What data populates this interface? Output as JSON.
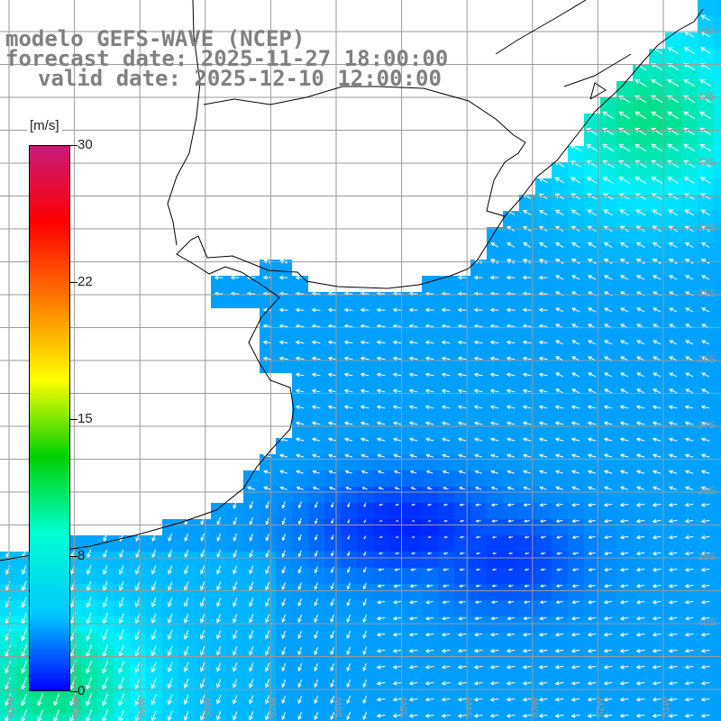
{
  "header": {
    "line1": "modelo GEFS-WAVE (NCEP)",
    "line2": "forecast date: 2025-11-27 18:00:00",
    "line3": "valid date: 2025-12-10 12:00:00"
  },
  "colorbar": {
    "unit": "[m/s]",
    "ticks": [
      "30",
      "22",
      "15",
      "8",
      "0"
    ],
    "colors": [
      "#c81a7a",
      "#ff0000",
      "#ff8000",
      "#ffff00",
      "#00d000",
      "#00ffd0",
      "#00c8ff",
      "#0000ff"
    ]
  },
  "lat_labels": [
    "31S",
    "32S",
    "33S",
    "34S",
    "35S",
    "36S",
    "37S",
    "38S",
    "39S",
    "40S"
  ],
  "lon_labels": [
    "61W",
    "60W",
    "59W",
    "58W",
    "57W",
    "56W",
    "55W",
    "54W",
    "53W",
    "52W",
    "51W"
  ]
}
